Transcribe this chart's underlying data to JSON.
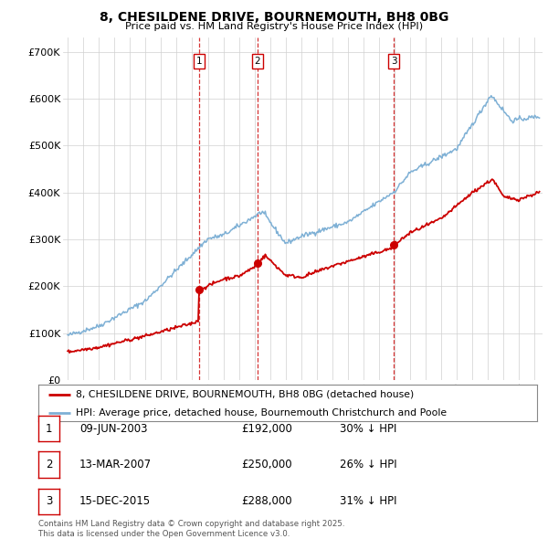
{
  "title": "8, CHESILDENE DRIVE, BOURNEMOUTH, BH8 0BG",
  "subtitle": "Price paid vs. HM Land Registry's House Price Index (HPI)",
  "ylabel_ticks": [
    "£0",
    "£100K",
    "£200K",
    "£300K",
    "£400K",
    "£500K",
    "£600K",
    "£700K"
  ],
  "ytick_values": [
    0,
    100000,
    200000,
    300000,
    400000,
    500000,
    600000,
    700000
  ],
  "ylim": [
    0,
    730000
  ],
  "xlim_start": 1994.7,
  "xlim_end": 2025.5,
  "sale_color": "#cc0000",
  "hpi_color": "#7eb0d5",
  "grid_color": "#d0d0d0",
  "background_color": "#ffffff",
  "sale_dates": [
    2003.44,
    2007.19,
    2015.96
  ],
  "sale_prices": [
    192000,
    250000,
    288000
  ],
  "sale_labels": [
    "1",
    "2",
    "3"
  ],
  "legend_sale_label": "8, CHESILDENE DRIVE, BOURNEMOUTH, BH8 0BG (detached house)",
  "legend_hpi_label": "HPI: Average price, detached house, Bournemouth Christchurch and Poole",
  "table_entries": [
    {
      "label": "1",
      "date": "09-JUN-2003",
      "price": "£192,000",
      "pct": "30% ↓ HPI"
    },
    {
      "label": "2",
      "date": "13-MAR-2007",
      "price": "£250,000",
      "pct": "26% ↓ HPI"
    },
    {
      "label": "3",
      "date": "15-DEC-2015",
      "price": "£288,000",
      "pct": "31% ↓ HPI"
    }
  ],
  "footnote": "Contains HM Land Registry data © Crown copyright and database right 2025.\nThis data is licensed under the Open Government Licence v3.0."
}
